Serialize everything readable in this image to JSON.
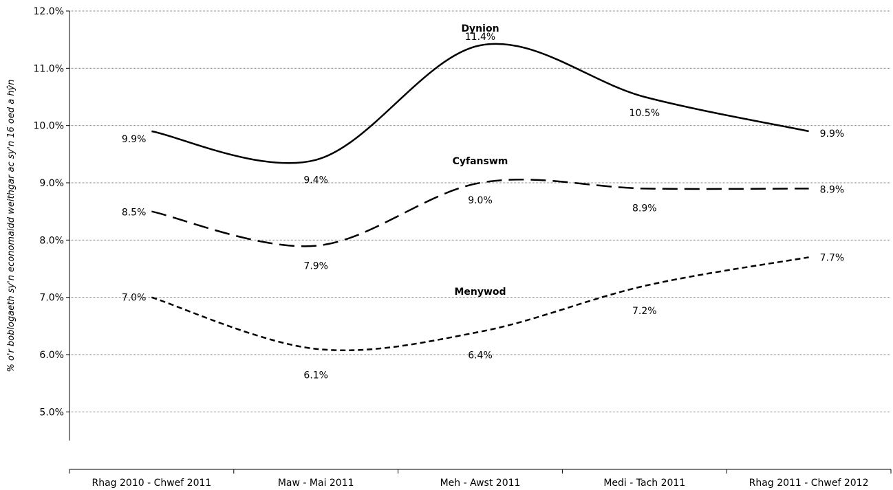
{
  "chart_data": {
    "type": "line",
    "categories": [
      "Rhag 2010 - Chwef 2011",
      "Maw - Mai 2011",
      "Meh - Awst 2011",
      "Medi - Tach 2011",
      "Rhag 2011 - Chwef 2012"
    ],
    "ylabel": "% o'r boblogaeth sy'n economaidd weithgar ac sy'n 16 oed a hŷn",
    "ylim": [
      4.5,
      12.0
    ],
    "yticks": [
      "5.0%",
      "6.0%",
      "7.0%",
      "8.0%",
      "9.0%",
      "10.0%",
      "11.0%",
      "12.0%"
    ],
    "ytick_values": [
      5.0,
      6.0,
      7.0,
      8.0,
      9.0,
      10.0,
      11.0,
      12.0
    ],
    "grid": true,
    "series": [
      {
        "name": "Dynion",
        "values": [
          9.9,
          9.4,
          11.4,
          10.5,
          9.9
        ],
        "labels": [
          "9.9%",
          "9.4%",
          "11.4%",
          "10.5%",
          "9.9%"
        ],
        "dash": "solid"
      },
      {
        "name": "Cyfanswm",
        "values": [
          8.5,
          7.9,
          9.0,
          8.9,
          8.9
        ],
        "labels": [
          "8.5%",
          "7.9%",
          "9.0%",
          "8.9%",
          "8.9%"
        ],
        "dash": "long-dash"
      },
      {
        "name": "Menywod",
        "values": [
          7.0,
          6.1,
          6.4,
          7.2,
          7.7
        ],
        "labels": [
          "7.0%",
          "6.1%",
          "6.4%",
          "7.2%",
          "7.7%"
        ],
        "dash": "short-dash"
      }
    ],
    "colors": {
      "line": "#000000",
      "grid": "#808080",
      "axis": "#000000"
    }
  }
}
